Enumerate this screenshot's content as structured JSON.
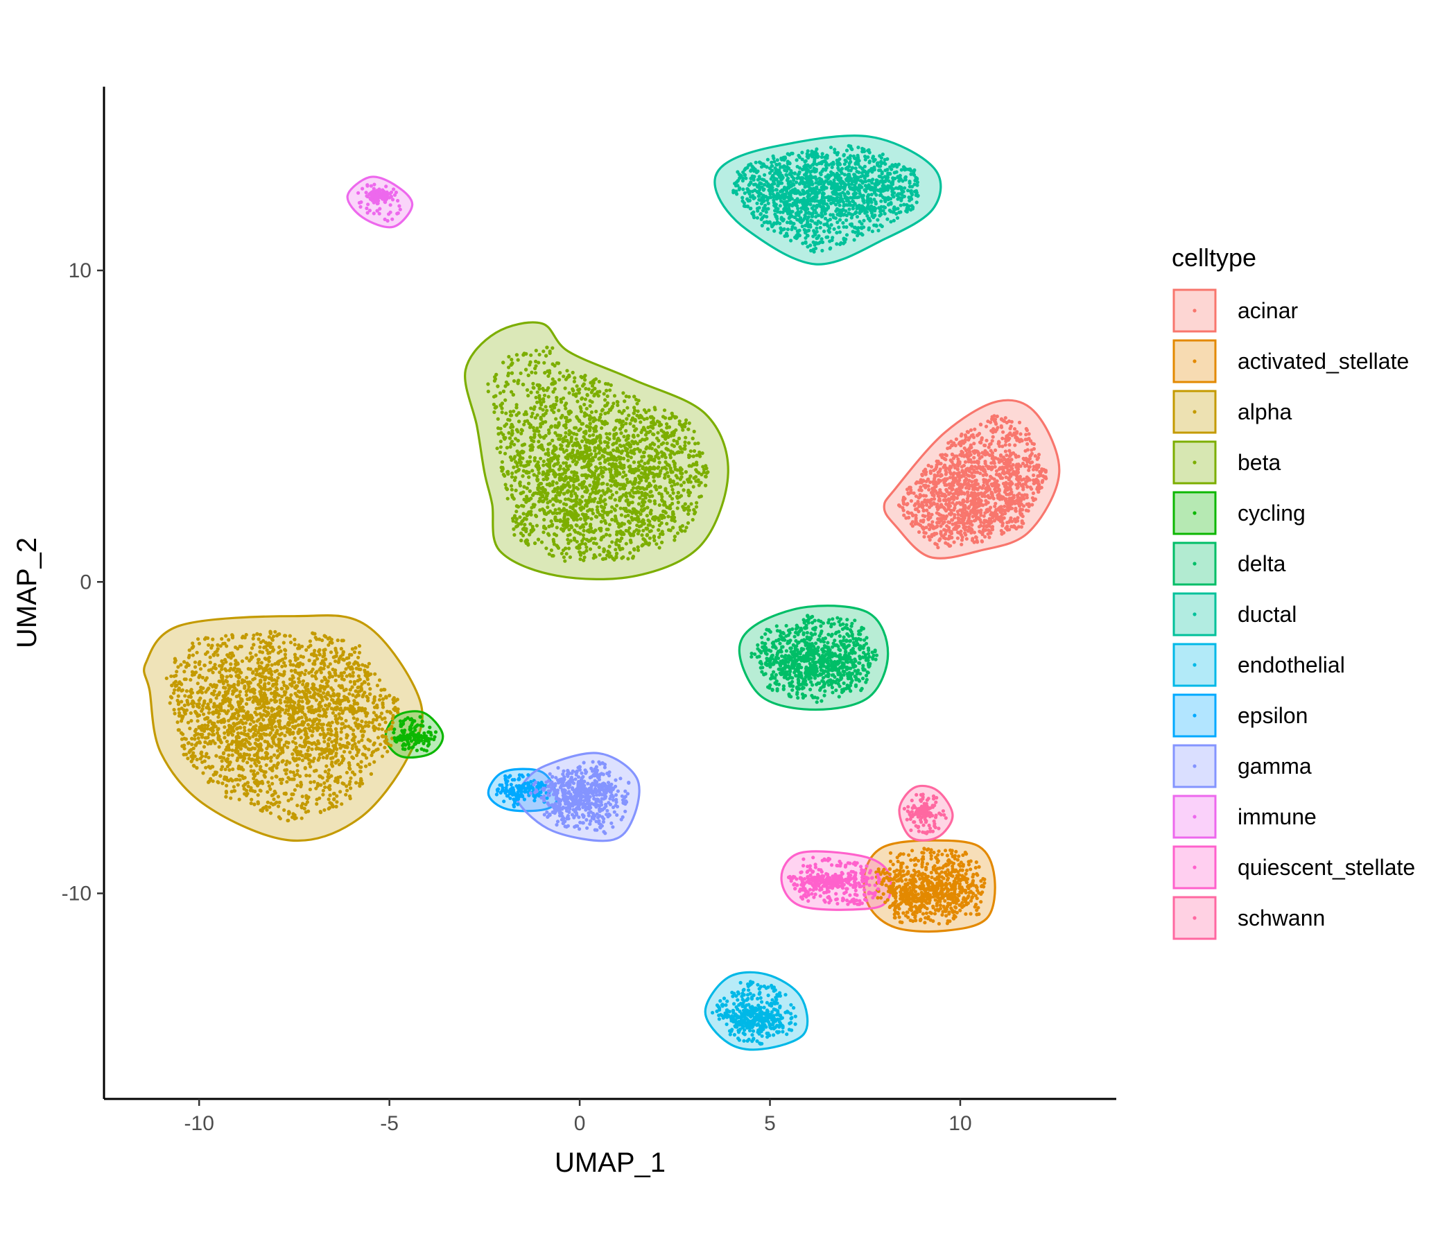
{
  "chart_data": {
    "type": "scatter",
    "xlabel": "UMAP_1",
    "ylabel": "UMAP_2",
    "xlim": [
      -12.5,
      14.1
    ],
    "ylim": [
      -16.6,
      15.9
    ],
    "x_ticks": [
      -10,
      -5,
      0,
      5,
      10
    ],
    "y_ticks": [
      -10,
      0,
      10
    ],
    "x_tick_labels": [
      "-10",
      "-5",
      "0",
      "5",
      "10"
    ],
    "y_tick_labels": [
      "-10",
      "0",
      "10"
    ],
    "grid": false,
    "legend_title": "celltype",
    "legend_position": "right",
    "series": [
      {
        "name": "acinar",
        "color": "#F8766D",
        "center": [
          10.5,
          2.8
        ],
        "spread": [
          1.35,
          0.95
        ],
        "hull": [
          [
            8.3,
            1.8
          ],
          [
            9.2,
            0.8
          ],
          [
            10.5,
            1.0
          ],
          [
            11.8,
            1.6
          ],
          [
            12.6,
            3.5
          ],
          [
            12.0,
            5.4
          ],
          [
            11.0,
            5.8
          ],
          [
            9.6,
            4.8
          ],
          [
            8.3,
            3.0
          ],
          [
            8.0,
            2.4
          ]
        ]
      },
      {
        "name": "activated_stellate",
        "color": "#E38900",
        "center": [
          9.2,
          -9.9
        ],
        "spread": [
          0.65,
          0.35
        ],
        "hull": [
          [
            7.6,
            -10.4
          ],
          [
            8.3,
            -11.1
          ],
          [
            9.6,
            -11.2
          ],
          [
            10.7,
            -10.8
          ],
          [
            10.9,
            -9.5
          ],
          [
            10.5,
            -8.5
          ],
          [
            9.3,
            -8.3
          ],
          [
            8.0,
            -8.5
          ],
          [
            7.5,
            -9.3
          ]
        ]
      },
      {
        "name": "alpha",
        "color": "#C49A00",
        "center": [
          -7.9,
          -4.2
        ],
        "spread": [
          1.6,
          1.05
        ],
        "hull": [
          [
            -11.3,
            -3.5
          ],
          [
            -11.0,
            -5.5
          ],
          [
            -9.8,
            -7.2
          ],
          [
            -7.6,
            -8.3
          ],
          [
            -5.8,
            -7.6
          ],
          [
            -4.5,
            -5.6
          ],
          [
            -4.2,
            -3.8
          ],
          [
            -5.6,
            -1.4
          ],
          [
            -7.5,
            -1.1
          ],
          [
            -10.5,
            -1.4
          ],
          [
            -11.4,
            -2.6
          ]
        ]
      },
      {
        "name": "beta",
        "color": "#7CAE00",
        "center": [
          0.6,
          3.5
        ],
        "spread": [
          1.45,
          1.35
        ],
        "hull": [
          [
            -2.3,
            2.5
          ],
          [
            -2.1,
            1.0
          ],
          [
            -0.6,
            0.2
          ],
          [
            1.5,
            0.2
          ],
          [
            3.2,
            1.2
          ],
          [
            3.9,
            3.5
          ],
          [
            3.3,
            5.4
          ],
          [
            1.4,
            6.5
          ],
          [
            -0.3,
            7.4
          ],
          [
            -1.0,
            8.3
          ],
          [
            -2.2,
            8.0
          ],
          [
            -3.0,
            6.8
          ],
          [
            -2.7,
            5.0
          ],
          [
            -2.5,
            3.5
          ]
        ]
      },
      {
        "name": "cycling",
        "color": "#0CB702",
        "center": [
          -4.4,
          -5.0
        ],
        "spread": [
          0.2,
          0.12
        ],
        "hull": [
          [
            -5.1,
            -5.0
          ],
          [
            -4.7,
            -5.6
          ],
          [
            -3.9,
            -5.5
          ],
          [
            -3.6,
            -4.9
          ],
          [
            -4.1,
            -4.2
          ],
          [
            -4.8,
            -4.3
          ]
        ]
      },
      {
        "name": "delta",
        "color": "#00BE67",
        "center": [
          6.2,
          -2.6
        ],
        "spread": [
          0.8,
          0.42
        ],
        "hull": [
          [
            4.2,
            -2.3
          ],
          [
            4.8,
            -3.7
          ],
          [
            6.2,
            -4.1
          ],
          [
            7.6,
            -3.7
          ],
          [
            8.1,
            -2.3
          ],
          [
            7.6,
            -1.0
          ],
          [
            6.0,
            -0.8
          ],
          [
            4.6,
            -1.4
          ]
        ]
      },
      {
        "name": "ductal",
        "color": "#00C19A",
        "center": [
          6.4,
          12.6
        ],
        "spread": [
          1.45,
          0.55
        ],
        "hull": [
          [
            3.6,
            12.5
          ],
          [
            4.4,
            11.3
          ],
          [
            6.2,
            10.2
          ],
          [
            8.0,
            11.0
          ],
          [
            9.3,
            12.0
          ],
          [
            9.3,
            13.3
          ],
          [
            7.6,
            14.3
          ],
          [
            5.2,
            14.0
          ],
          [
            3.8,
            13.4
          ]
        ]
      },
      {
        "name": "endothelial",
        "color": "#00B8E7",
        "center": [
          4.6,
          -14.0
        ],
        "spread": [
          0.35,
          0.25
        ],
        "hull": [
          [
            3.3,
            -13.8
          ],
          [
            3.9,
            -14.8
          ],
          [
            4.8,
            -15.0
          ],
          [
            5.9,
            -14.5
          ],
          [
            5.8,
            -13.3
          ],
          [
            4.9,
            -12.6
          ],
          [
            3.9,
            -12.7
          ]
        ]
      },
      {
        "name": "epsilon",
        "color": "#00A9FF",
        "center": [
          -1.5,
          -6.7
        ],
        "spread": [
          0.4,
          0.14
        ],
        "hull": [
          [
            -2.4,
            -6.8
          ],
          [
            -1.9,
            -7.3
          ],
          [
            -0.9,
            -7.3
          ],
          [
            -0.6,
            -6.9
          ],
          [
            -1.0,
            -6.1
          ],
          [
            -2.0,
            -6.1
          ]
        ]
      },
      {
        "name": "gamma",
        "color": "#8494FF",
        "center": [
          0.1,
          -6.8
        ],
        "spread": [
          0.45,
          0.35
        ],
        "hull": [
          [
            -1.6,
            -7.1
          ],
          [
            -0.7,
            -8.0
          ],
          [
            0.8,
            -8.3
          ],
          [
            1.4,
            -7.6
          ],
          [
            1.5,
            -6.3
          ],
          [
            0.5,
            -5.5
          ],
          [
            -0.9,
            -5.9
          ],
          [
            -1.5,
            -6.5
          ]
        ]
      },
      {
        "name": "immune",
        "color": "#ED68ED",
        "center": [
          -5.3,
          12.4
        ],
        "spread": [
          0.15,
          0.08
        ],
        "hull": [
          [
            -6.1,
            12.4
          ],
          [
            -5.7,
            11.7
          ],
          [
            -4.9,
            11.4
          ],
          [
            -4.4,
            12.1
          ],
          [
            -4.8,
            12.7
          ],
          [
            -5.5,
            13.0
          ]
        ]
      },
      {
        "name": "quiescent_stellate",
        "color": "#FF61CC",
        "center": [
          6.5,
          -9.6
        ],
        "spread": [
          0.55,
          0.12
        ],
        "hull": [
          [
            5.3,
            -9.5
          ],
          [
            5.8,
            -10.4
          ],
          [
            7.5,
            -10.5
          ],
          [
            8.1,
            -10.2
          ],
          [
            8.1,
            -9.3
          ],
          [
            7.4,
            -8.8
          ],
          [
            5.8,
            -8.7
          ]
        ]
      },
      {
        "name": "schwann",
        "color": "#FF68A1",
        "center": [
          9.0,
          -7.4
        ],
        "spread": [
          0.12,
          0.1
        ],
        "hull": [
          [
            8.4,
            -7.3
          ],
          [
            8.7,
            -8.2
          ],
          [
            9.4,
            -8.2
          ],
          [
            9.8,
            -7.5
          ],
          [
            9.4,
            -6.7
          ],
          [
            8.8,
            -6.6
          ]
        ]
      }
    ]
  }
}
